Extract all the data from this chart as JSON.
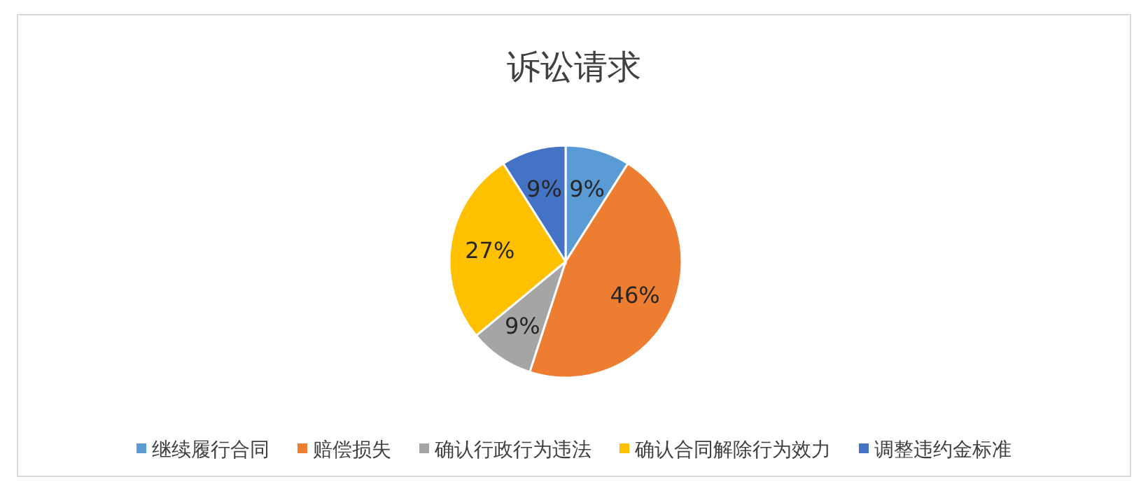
{
  "chart_data": {
    "type": "pie",
    "title": "诉讼请求",
    "categories": [
      "继续履行合同",
      "赔偿损失",
      "确认行政行为违法",
      "确认合同解除行为效力",
      "调整违约金标准"
    ],
    "values": [
      9,
      46,
      9,
      27,
      9
    ],
    "value_labels": [
      "9%",
      "46%",
      "9%",
      "27%",
      "9%"
    ],
    "colors": [
      "#5b9bd5",
      "#ed7d31",
      "#a5a5a5",
      "#ffc000",
      "#4472c4"
    ],
    "legend": "bottom"
  }
}
